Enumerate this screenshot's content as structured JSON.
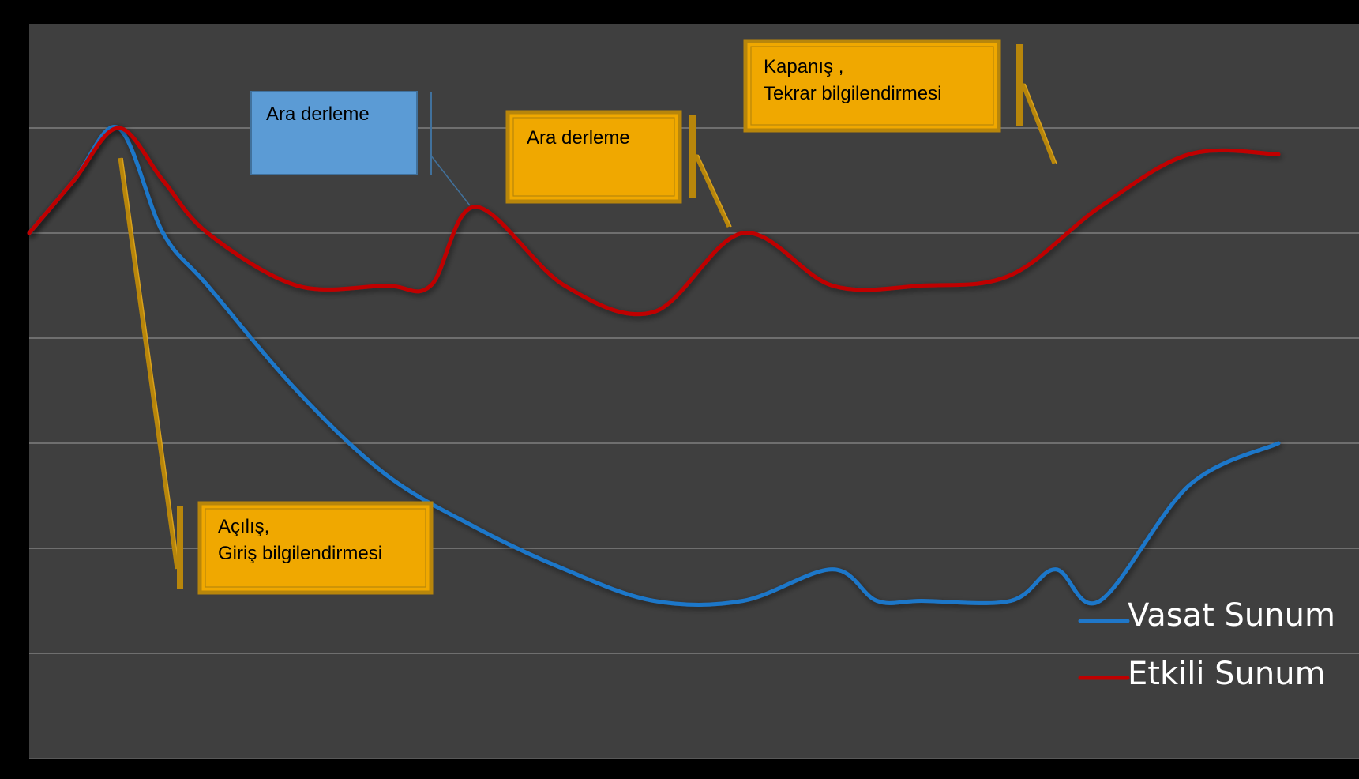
{
  "chart_data": {
    "type": "line",
    "title": "",
    "xlabel": "",
    "ylabel": "",
    "grid": true,
    "legend_position": "bottom-right",
    "series": [
      {
        "name": "Vasat Sunum",
        "color": "#1f77c9",
        "points": [
          [
            0,
            5.0
          ],
          [
            0.5,
            5.5
          ],
          [
            1.0,
            6.0
          ],
          [
            1.5,
            5.0
          ],
          [
            2.0,
            4.5
          ],
          [
            3.0,
            3.5
          ],
          [
            4.0,
            2.7
          ],
          [
            5.0,
            2.2
          ],
          [
            6.0,
            1.8
          ],
          [
            7.0,
            1.5
          ],
          [
            8.0,
            1.5
          ],
          [
            9.0,
            1.8
          ],
          [
            9.5,
            1.5
          ],
          [
            10.0,
            1.5
          ],
          [
            11.0,
            1.5
          ],
          [
            11.5,
            1.8
          ],
          [
            12.0,
            1.5
          ],
          [
            13.0,
            2.6
          ],
          [
            14.0,
            3.0
          ]
        ]
      },
      {
        "name": "Etkili Sunum",
        "color": "#c00000",
        "points": [
          [
            0,
            5.0
          ],
          [
            0.5,
            5.5
          ],
          [
            1.0,
            6.0
          ],
          [
            1.5,
            5.5
          ],
          [
            2.0,
            5.0
          ],
          [
            3.0,
            4.5
          ],
          [
            4.0,
            4.5
          ],
          [
            4.5,
            4.5
          ],
          [
            5.0,
            5.25
          ],
          [
            6.0,
            4.5
          ],
          [
            7.0,
            4.25
          ],
          [
            8.0,
            5.0
          ],
          [
            9.0,
            4.5
          ],
          [
            10.0,
            4.5
          ],
          [
            11.0,
            4.6
          ],
          [
            12.0,
            5.25
          ],
          [
            13.0,
            5.75
          ],
          [
            14.0,
            5.75
          ]
        ]
      }
    ],
    "xlim": [
      0,
      15
    ],
    "ylim": [
      0,
      7
    ],
    "annotations": [
      {
        "text": "Açılış,\nGiriş bilgilendirmesi",
        "style": "gold",
        "pointer": [
          1.0,
          6.0
        ]
      },
      {
        "text": "Ara  derleme",
        "style": "blue",
        "pointer": [
          5.0,
          5.25
        ]
      },
      {
        "text": "Ara derleme",
        "style": "gold",
        "pointer": [
          8.0,
          5.0
        ]
      },
      {
        "text": "Kapanış ,\nTekrar bilgilendirmesi",
        "style": "gold",
        "pointer": [
          12.5,
          5.6
        ]
      }
    ]
  },
  "colors": {
    "background": "#000000",
    "plot_area": "#3f3f3f",
    "gridline": "#8c8c8c",
    "gold_fill": "#f0a800",
    "gold_border": "#b8860b",
    "blue_fill": "#5b9bd5",
    "blue_border": "#41719c"
  }
}
